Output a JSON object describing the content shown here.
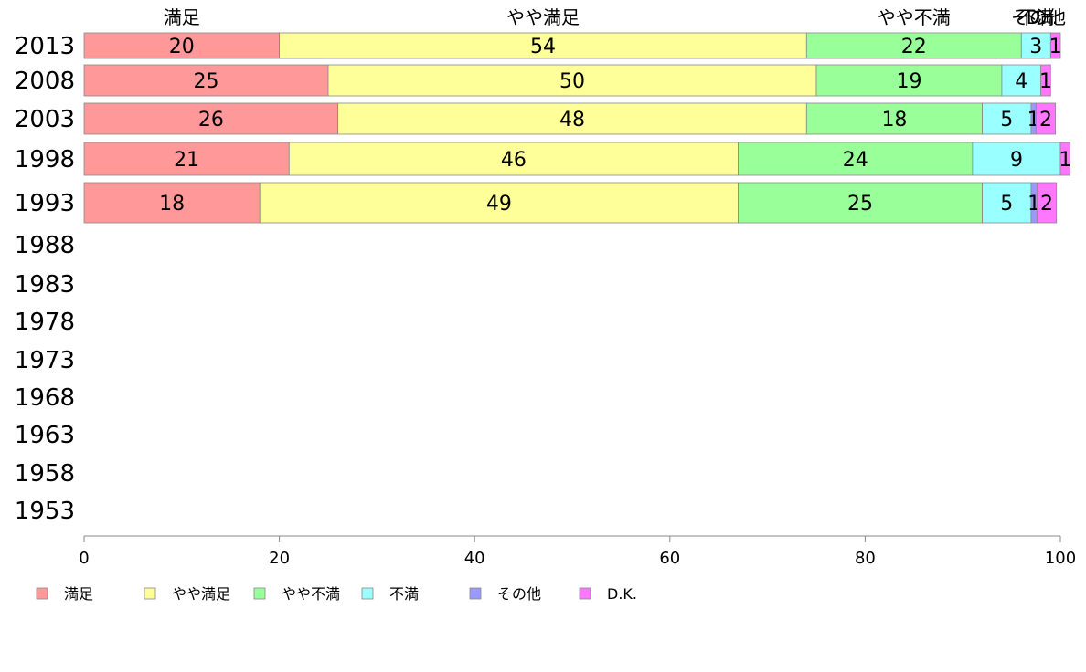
{
  "chart_data": {
    "type": "bar",
    "orientation": "horizontal",
    "stacked": true,
    "categories": [
      "2013",
      "2008",
      "2003",
      "1998",
      "1993",
      "1988",
      "1983",
      "1978",
      "1973",
      "1968",
      "1963",
      "1958",
      "1953"
    ],
    "series": [
      {
        "name": "満足",
        "color": "#ff9999",
        "values": [
          20,
          25,
          26,
          21,
          18,
          null,
          null,
          null,
          null,
          null,
          null,
          null,
          null
        ]
      },
      {
        "name": "やや満足",
        "color": "#ffff99",
        "values": [
          54,
          50,
          48,
          46,
          49,
          null,
          null,
          null,
          null,
          null,
          null,
          null,
          null
        ]
      },
      {
        "name": "やや不満",
        "color": "#99ff99",
        "values": [
          22,
          19,
          18,
          24,
          25,
          null,
          null,
          null,
          null,
          null,
          null,
          null,
          null
        ]
      },
      {
        "name": "不満",
        "color": "#99ffff",
        "values": [
          3,
          4,
          5,
          9,
          5,
          null,
          null,
          null,
          null,
          null,
          null,
          null,
          null
        ]
      },
      {
        "name": "その他",
        "color": "#9999ff",
        "values": [
          0,
          0,
          0.5,
          0,
          0.6,
          null,
          null,
          null,
          null,
          null,
          null,
          null,
          null
        ]
      },
      {
        "name": "D.K.",
        "color": "#ff77ff",
        "values": [
          1,
          1,
          2,
          1,
          2,
          null,
          null,
          null,
          null,
          null,
          null,
          null,
          null
        ]
      }
    ],
    "data_labels": [
      [
        "20",
        "54",
        "22",
        "3",
        "",
        "1"
      ],
      [
        "25",
        "50",
        "19",
        "4",
        "",
        "1"
      ],
      [
        "26",
        "48",
        "18",
        "5",
        "1",
        "2"
      ],
      [
        "21",
        "46",
        "24",
        "9",
        "",
        "1"
      ],
      [
        "18",
        "49",
        "25",
        "5",
        "1",
        "2"
      ]
    ],
    "top_labels": [
      "満足",
      "やや満足",
      "やや不満",
      "不満",
      "その他",
      "D..."
    ],
    "xlim": [
      0,
      100
    ],
    "xticks": [
      0,
      20,
      40,
      60,
      80,
      100
    ],
    "legend_position": "bottom",
    "grid": false
  }
}
